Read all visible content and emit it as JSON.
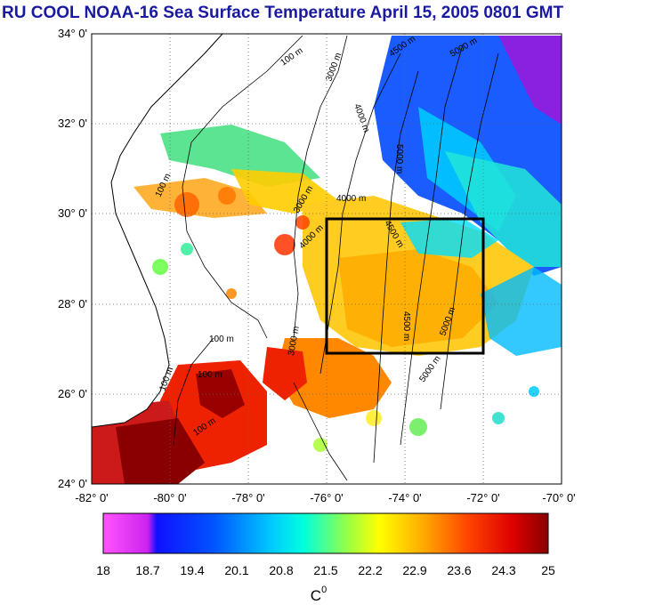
{
  "title": "RU COOL  NOAA-16 Sea Surface Temperature April 15, 2005 0801 GMT",
  "map": {
    "lon_range": [
      -82,
      -70
    ],
    "lat_range": [
      24,
      34
    ],
    "lon_ticks": [
      "-82° 0'",
      "-80° 0'",
      "-78° 0'",
      "-76° 0'",
      "-74° 0'",
      "-72° 0'",
      "-70° 0'"
    ],
    "lat_ticks": [
      "34° 0'",
      "32° 0'",
      "30° 0'",
      "28° 0'",
      "26° 0'",
      "24° 0'"
    ],
    "grid": "dotted",
    "study_box": {
      "lon": [
        -76,
        -72
      ],
      "lat": [
        27,
        30
      ]
    },
    "contour_labels": [
      "100 m",
      "100 m",
      "100 m",
      "100 m",
      "100 m",
      "100 m",
      "3000 m",
      "3000 m",
      "3000 m",
      "4000 m",
      "4000 m",
      "4000 m",
      "4500 m",
      "4500 m",
      "4500 m",
      "5000 m",
      "5000 m",
      "5000 m",
      "5000 m"
    ]
  },
  "colorbar": {
    "ticks": [
      "18",
      "18.7",
      "19.4",
      "20.1",
      "20.8",
      "21.5",
      "22.2",
      "22.9",
      "23.6",
      "24.3",
      "25"
    ],
    "range": [
      18,
      25
    ],
    "unit_label": "C",
    "unit_superscript": "0",
    "colors": [
      "#ff44ff",
      "#cc22ee",
      "#0000ff",
      "#0066ff",
      "#00bbff",
      "#00ffee",
      "#66ff66",
      "#ffff00",
      "#ffaa00",
      "#ff5500",
      "#ee0000",
      "#990000"
    ]
  }
}
